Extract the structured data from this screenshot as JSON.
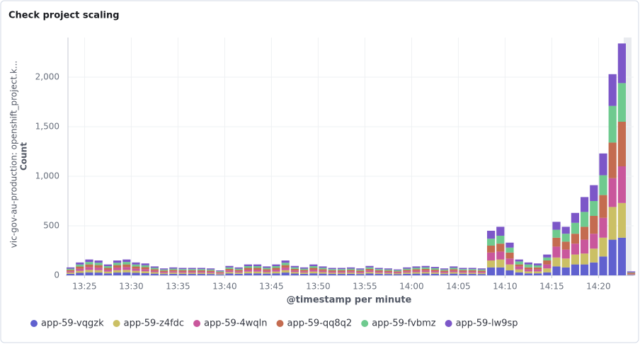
{
  "chart_data": {
    "type": "stacked-bar",
    "title": "Check project scaling",
    "ylabel": "Count",
    "ysublabel": "vic-gov-au-production: openshift_project.k...",
    "xlabel": "@timestamp per minute",
    "categories": [
      null,
      null,
      "13:25",
      null,
      null,
      null,
      null,
      "13:30",
      null,
      null,
      null,
      null,
      "13:35",
      null,
      null,
      null,
      null,
      "13:40",
      null,
      null,
      null,
      null,
      "13:45",
      null,
      null,
      null,
      null,
      "13:50",
      null,
      null,
      null,
      null,
      "13:55",
      null,
      null,
      null,
      null,
      "14:00",
      null,
      null,
      null,
      null,
      "14:05",
      null,
      null,
      null,
      null,
      "14:10",
      null,
      null,
      null,
      null,
      "14:15",
      null,
      null,
      null,
      null,
      "14:20",
      null,
      null,
      null
    ],
    "ylim": [
      0,
      2400
    ],
    "yticks": [
      0,
      500,
      {
        "value": 1000,
        "label": "1,000"
      },
      {
        "value": 1500,
        "label": "1,500"
      },
      {
        "value": 2000,
        "label": "2,000"
      }
    ],
    "grid": true,
    "legend": "bottom",
    "series": [
      {
        "name": "app-59-vqgzk",
        "color": "#6061cf",
        "values": [
          15,
          25,
          30,
          28,
          20,
          28,
          30,
          25,
          22,
          17,
          13,
          15,
          14,
          14,
          14,
          13,
          9,
          18,
          15,
          20,
          20,
          17,
          20,
          28,
          18,
          15,
          20,
          17,
          14,
          14,
          15,
          13,
          18,
          14,
          13,
          11,
          15,
          17,
          18,
          16,
          13,
          17,
          14,
          14,
          13,
          80,
          80,
          50,
          30,
          20,
          20,
          30,
          90,
          80,
          110,
          110,
          130,
          190,
          360,
          380,
          5
        ]
      },
      {
        "name": "app-59-z4fdc",
        "color": "#cbc065",
        "values": [
          13,
          20,
          25,
          24,
          18,
          24,
          25,
          20,
          19,
          15,
          11,
          13,
          12,
          12,
          12,
          11,
          8,
          15,
          13,
          18,
          18,
          15,
          18,
          24,
          15,
          13,
          18,
          15,
          12,
          12,
          13,
          11,
          15,
          12,
          11,
          10,
          13,
          15,
          15,
          14,
          11,
          15,
          12,
          12,
          11,
          70,
          80,
          60,
          30,
          20,
          20,
          40,
          90,
          90,
          100,
          110,
          140,
          190,
          330,
          350,
          5
        ]
      },
      {
        "name": "app-59-4wqln",
        "color": "#c9579c",
        "values": [
          13,
          22,
          28,
          26,
          19,
          26,
          28,
          22,
          21,
          15,
          12,
          13,
          13,
          13,
          13,
          12,
          9,
          16,
          13,
          19,
          19,
          15,
          19,
          26,
          16,
          13,
          19,
          15,
          13,
          13,
          13,
          12,
          16,
          13,
          12,
          10,
          13,
          15,
          16,
          14,
          12,
          15,
          13,
          13,
          12,
          80,
          80,
          60,
          30,
          20,
          20,
          40,
          110,
          90,
          110,
          140,
          150,
          200,
          290,
          370,
          5
        ]
      },
      {
        "name": "app-59-qq8q2",
        "color": "#c46c50",
        "values": [
          14,
          22,
          27,
          25,
          18,
          25,
          27,
          22,
          20,
          15,
          12,
          14,
          12,
          12,
          12,
          12,
          8,
          16,
          14,
          18,
          18,
          15,
          18,
          25,
          16,
          14,
          18,
          15,
          12,
          12,
          14,
          12,
          16,
          12,
          12,
          10,
          14,
          15,
          16,
          14,
          12,
          15,
          12,
          12,
          12,
          70,
          80,
          60,
          20,
          20,
          20,
          40,
          90,
          80,
          100,
          130,
          180,
          230,
          360,
          450,
          10
        ]
      },
      {
        "name": "app-59-fvbmz",
        "color": "#6fca8f",
        "values": [
          12,
          20,
          25,
          24,
          18,
          24,
          25,
          20,
          19,
          14,
          11,
          12,
          12,
          12,
          12,
          11,
          8,
          15,
          12,
          18,
          18,
          14,
          18,
          24,
          15,
          12,
          18,
          14,
          12,
          12,
          12,
          11,
          15,
          12,
          11,
          10,
          12,
          14,
          15,
          14,
          11,
          14,
          12,
          12,
          11,
          70,
          80,
          50,
          30,
          30,
          20,
          30,
          80,
          80,
          110,
          150,
          150,
          200,
          370,
          390,
          5
        ]
      },
      {
        "name": "app-59-lw9sp",
        "color": "#7c57c8",
        "values": [
          13,
          21,
          25,
          23,
          17,
          23,
          25,
          21,
          19,
          14,
          11,
          13,
          12,
          12,
          12,
          11,
          8,
          15,
          13,
          17,
          17,
          14,
          17,
          23,
          15,
          13,
          17,
          14,
          12,
          12,
          13,
          11,
          15,
          12,
          11,
          9,
          13,
          14,
          15,
          13,
          11,
          14,
          12,
          12,
          11,
          80,
          90,
          50,
          20,
          20,
          20,
          30,
          80,
          70,
          100,
          150,
          160,
          220,
          320,
          400,
          10
        ]
      }
    ]
  }
}
